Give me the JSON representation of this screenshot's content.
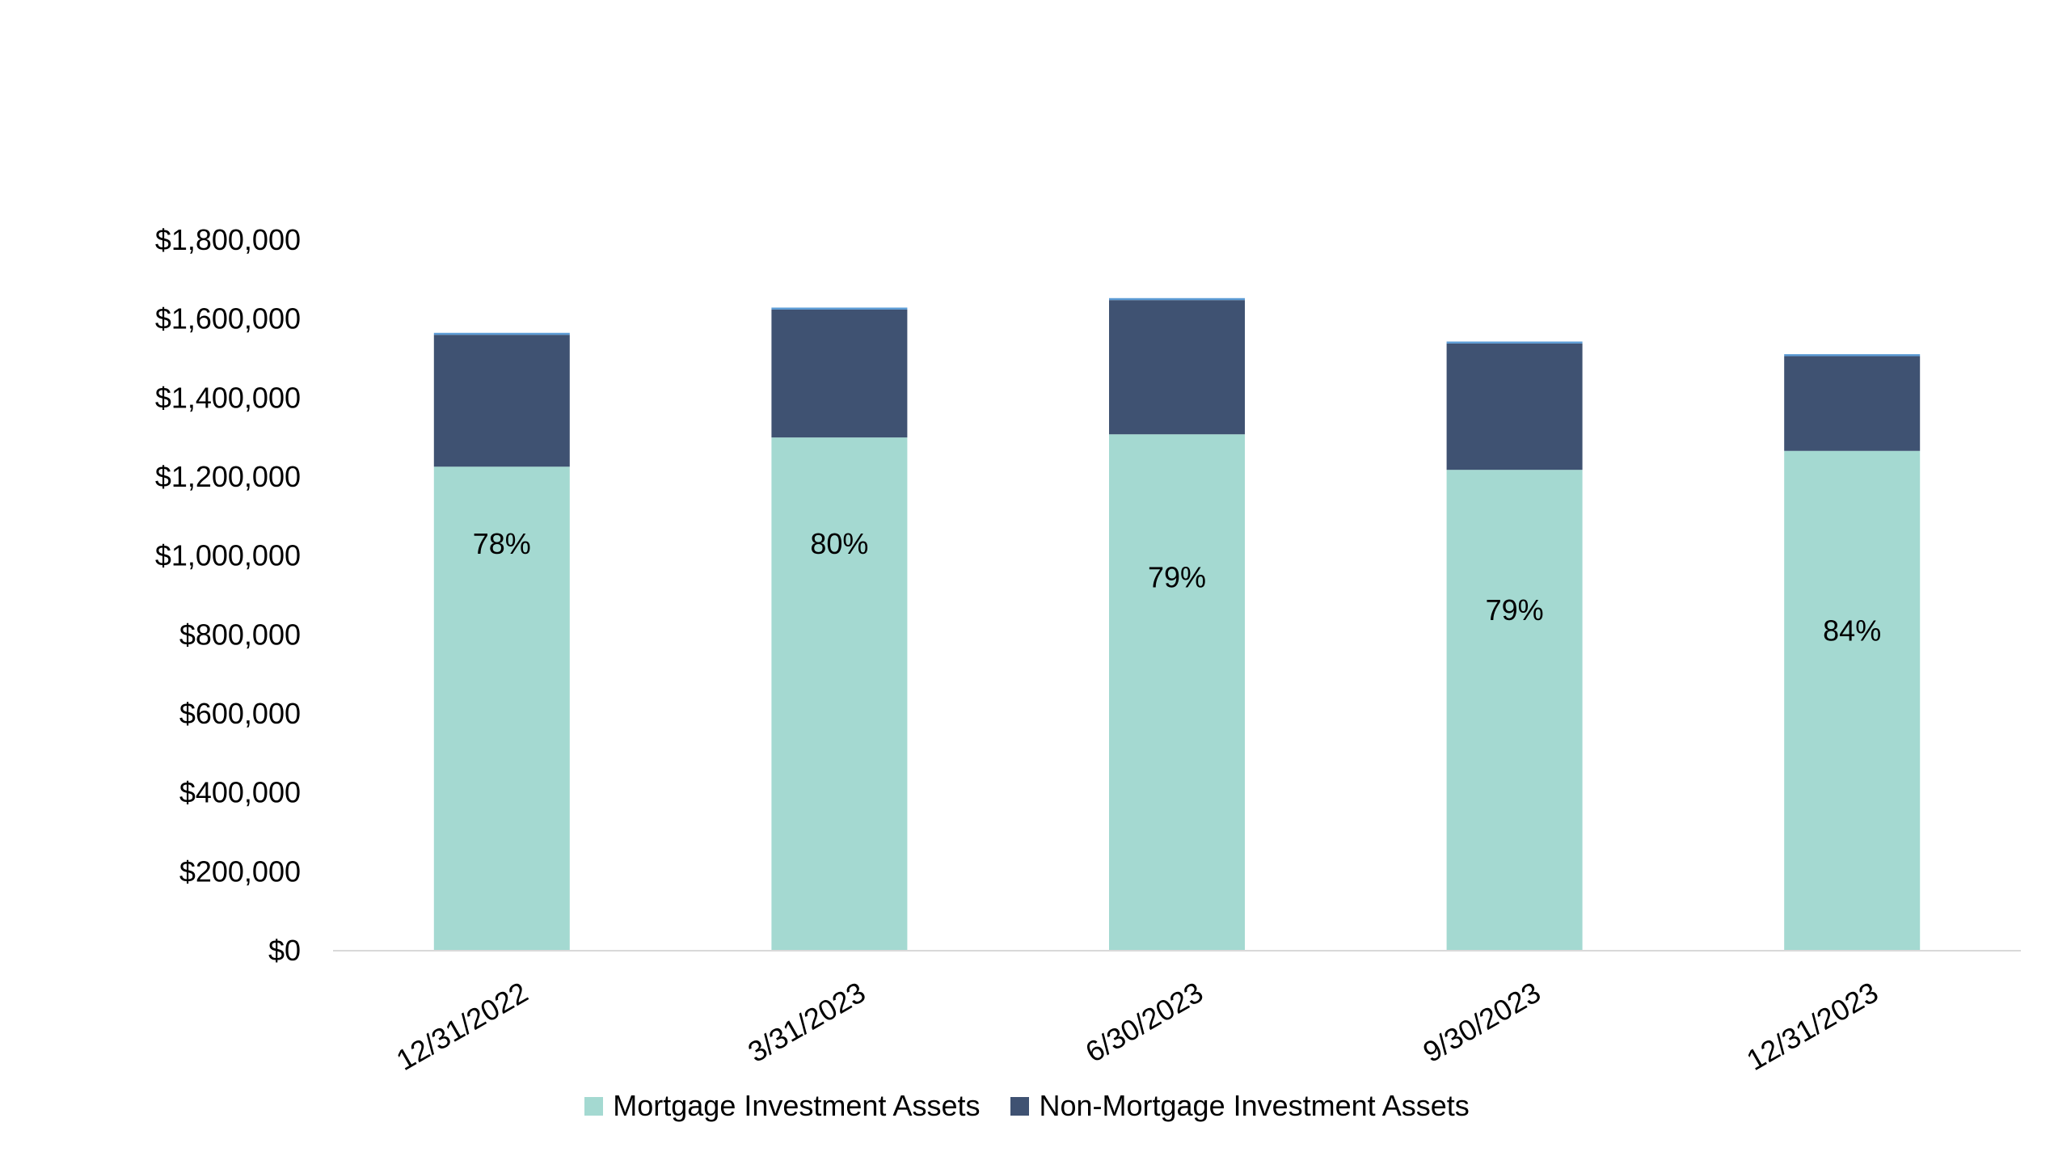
{
  "chart_data": {
    "type": "bar",
    "stacked": true,
    "categories": [
      "12/31/2022",
      "3/31/2023",
      "6/30/2023",
      "9/30/2023",
      "12/31/2023"
    ],
    "series": [
      {
        "name": "Mortgage Investment Assets",
        "color": "#A4D9D1",
        "values": [
          1224000,
          1298000,
          1306000,
          1216000,
          1264000
        ]
      },
      {
        "name": "Non-Mortgage Investment Assets",
        "color": "#3F5272",
        "values": [
          334000,
          324000,
          340000,
          320000,
          240000
        ]
      },
      {
        "name": "",
        "color": "#5B9BD5",
        "values": [
          5000,
          5000,
          5000,
          5000,
          5000
        ]
      }
    ],
    "data_labels": [
      "78%",
      "80%",
      "79%",
      "79%",
      "84%"
    ],
    "data_label_values": [
      1030000,
      1030000,
      945000,
      862000,
      810000
    ],
    "y_ticks": [
      "$0",
      "$200,000",
      "$400,000",
      "$600,000",
      "$800,000",
      "$1,000,000",
      "$1,200,000",
      "$1,400,000",
      "$1,600,000",
      "$1,800,000"
    ],
    "ylim": [
      0,
      1800000
    ],
    "y_step": 200000,
    "grid": false,
    "legend": "bottom",
    "xlabel": "",
    "ylabel": "",
    "title": ""
  }
}
